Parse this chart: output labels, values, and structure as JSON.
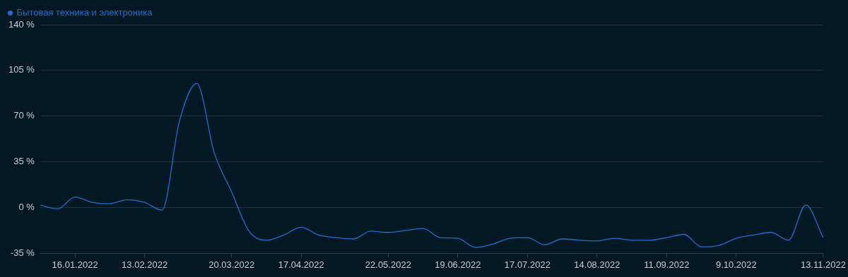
{
  "chart_data": {
    "type": "line",
    "x": [
      "2022-01-02",
      "2022-01-09",
      "2022-01-16",
      "2022-01-23",
      "2022-01-30",
      "2022-02-06",
      "2022-02-13",
      "2022-02-20",
      "2022-02-27",
      "2022-03-06",
      "2022-03-13",
      "2022-03-20",
      "2022-03-27",
      "2022-04-03",
      "2022-04-10",
      "2022-04-17",
      "2022-04-24",
      "2022-05-01",
      "2022-05-08",
      "2022-05-15",
      "2022-05-22",
      "2022-05-29",
      "2022-06-05",
      "2022-06-12",
      "2022-06-19",
      "2022-06-26",
      "2022-07-03",
      "2022-07-10",
      "2022-07-17",
      "2022-07-24",
      "2022-07-31",
      "2022-08-07",
      "2022-08-14",
      "2022-08-21",
      "2022-08-28",
      "2022-09-04",
      "2022-09-11",
      "2022-09-18",
      "2022-09-25",
      "2022-10-02",
      "2022-10-09",
      "2022-10-16",
      "2022-10-23",
      "2022-10-30",
      "2022-11-06",
      "2022-11-13"
    ],
    "series": [
      {
        "name": "Бытовая техника и электроника",
        "color": "#1f6fd1",
        "values": [
          2,
          -1,
          8,
          4,
          3,
          6,
          4,
          -2,
          66,
          95,
          42,
          12,
          -18,
          -25,
          -21,
          -15,
          -21,
          -23,
          -24,
          -18,
          -19,
          -17.5,
          -16,
          -23,
          -23.5,
          -30.5,
          -28,
          -23.5,
          -23,
          -28.5,
          -24,
          -25,
          -25.5,
          -23.5,
          -25,
          -25,
          -23,
          -20.5,
          -30,
          -29,
          -23.5,
          -21,
          -19,
          -25,
          2,
          -23
        ]
      }
    ],
    "xlim": [
      "2022-01-02",
      "2022-11-13"
    ],
    "xticks": [
      {
        "value": "2022-01-16",
        "label": "16.01.2022"
      },
      {
        "value": "2022-02-13",
        "label": "13.02.2022"
      },
      {
        "value": "2022-03-20",
        "label": "20.03.2022"
      },
      {
        "value": "2022-04-17",
        "label": "17.04.2022"
      },
      {
        "value": "2022-05-22",
        "label": "22.05.2022"
      },
      {
        "value": "2022-06-19",
        "label": "19.06.2022"
      },
      {
        "value": "2022-07-17",
        "label": "17.07.2022"
      },
      {
        "value": "2022-08-14",
        "label": "14.08.2022"
      },
      {
        "value": "2022-09-11",
        "label": "11.09.2022"
      },
      {
        "value": "2022-10-09",
        "label": "9.10.2022"
      },
      {
        "value": "2022-11-13",
        "label": "13.11.2022"
      }
    ],
    "ylim": [
      -35,
      140
    ],
    "yticks": [
      {
        "value": -35,
        "label": "-35 %"
      },
      {
        "value": 0,
        "label": "0 %"
      },
      {
        "value": 35,
        "label": "35 %"
      },
      {
        "value": 70,
        "label": "70 %"
      },
      {
        "value": 105,
        "label": "105 %"
      },
      {
        "value": 140,
        "label": "140 %"
      }
    ],
    "grid": "y",
    "legend": "top left",
    "marker": "none",
    "line_style": "solid"
  }
}
